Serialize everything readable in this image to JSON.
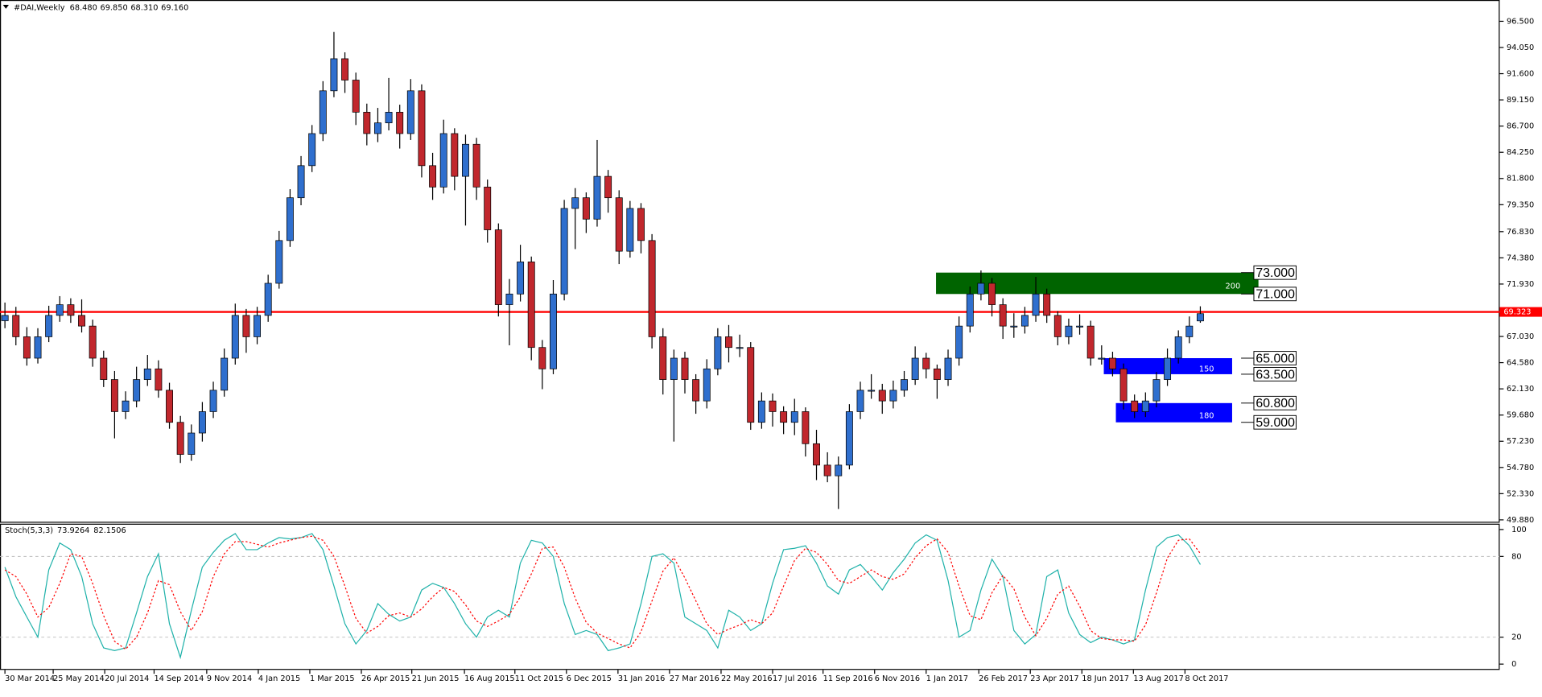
{
  "chart_data": {
    "type": "candlestick",
    "symbol": "#DAI,Weekly",
    "header_values": [
      68.48,
      69.85,
      68.31,
      69.16
    ],
    "header_value_labels": [
      "68.480",
      "69.850",
      "68.310",
      "69.160"
    ],
    "bull_color": "#2f6fce",
    "bear_color": "#c1272d",
    "candles": [
      [
        68.5,
        70.2,
        67.8,
        69
      ],
      [
        69,
        69.8,
        66.2,
        67
      ],
      [
        67,
        67.9,
        64.3,
        65
      ],
      [
        65,
        67.8,
        64.5,
        67
      ],
      [
        67,
        69.9,
        66.5,
        69
      ],
      [
        69,
        70.8,
        68.4,
        70
      ],
      [
        70,
        70.6,
        68.3,
        69
      ],
      [
        69,
        70.5,
        67.4,
        68
      ],
      [
        68,
        68.6,
        64.2,
        65
      ],
      [
        65,
        65.7,
        62.3,
        63
      ],
      [
        63,
        63.8,
        57.5,
        60
      ],
      [
        60,
        61.9,
        59.3,
        61
      ],
      [
        61,
        64.2,
        60.4,
        63
      ],
      [
        63,
        65.3,
        62.4,
        64
      ],
      [
        64,
        64.8,
        61.3,
        62
      ],
      [
        62,
        62.7,
        58.4,
        59
      ],
      [
        59,
        59.6,
        55.2,
        56
      ],
      [
        56,
        58.8,
        55.4,
        58
      ],
      [
        58,
        60.9,
        57.2,
        60
      ],
      [
        60,
        62.8,
        59.4,
        62
      ],
      [
        62,
        65.9,
        61.4,
        65
      ],
      [
        65,
        70.1,
        64.4,
        69
      ],
      [
        69,
        69.6,
        65.5,
        67
      ],
      [
        67,
        69.8,
        66.3,
        69
      ],
      [
        69,
        72.8,
        68.4,
        72
      ],
      [
        72,
        76.9,
        71.5,
        76
      ],
      [
        76,
        80.8,
        75.4,
        80
      ],
      [
        80,
        83.9,
        79.3,
        83
      ],
      [
        83,
        86.8,
        82.4,
        86
      ],
      [
        86,
        90.9,
        85.3,
        90
      ],
      [
        90,
        95.5,
        89.4,
        93
      ],
      [
        93,
        93.6,
        89.8,
        91
      ],
      [
        91,
        91.7,
        86.8,
        88
      ],
      [
        88,
        88.8,
        84.9,
        86
      ],
      [
        86,
        88.4,
        85.2,
        87
      ],
      [
        87,
        91.2,
        86.3,
        88
      ],
      [
        88,
        88.7,
        84.6,
        86
      ],
      [
        86,
        91.1,
        85.4,
        90
      ],
      [
        90,
        90.6,
        81.9,
        83
      ],
      [
        83,
        84.2,
        79.8,
        81
      ],
      [
        81,
        87.3,
        80.4,
        86
      ],
      [
        86,
        86.5,
        80.7,
        82
      ],
      [
        82,
        85.9,
        77.4,
        85
      ],
      [
        85,
        85.6,
        79.8,
        81
      ],
      [
        81,
        81.7,
        75.8,
        77
      ],
      [
        77,
        77.6,
        68.9,
        70
      ],
      [
        70,
        72.4,
        66.2,
        71
      ],
      [
        71,
        75.6,
        70.3,
        74
      ],
      [
        74,
        74.5,
        64.8,
        66
      ],
      [
        66,
        66.7,
        62.1,
        64
      ],
      [
        64,
        72.3,
        63.5,
        71
      ],
      [
        71,
        79.8,
        70.4,
        79
      ],
      [
        79,
        80.9,
        75.2,
        80
      ],
      [
        80,
        80.5,
        76.7,
        78
      ],
      [
        78,
        85.4,
        77.3,
        82
      ],
      [
        82,
        82.6,
        78.6,
        80
      ],
      [
        80,
        80.7,
        73.8,
        75
      ],
      [
        75,
        79.7,
        74.4,
        79
      ],
      [
        79,
        79.5,
        74.8,
        76
      ],
      [
        76,
        76.6,
        65.9,
        67
      ],
      [
        67,
        67.8,
        61.6,
        63
      ],
      [
        63,
        65.8,
        57.2,
        65
      ],
      [
        65,
        65.6,
        61.7,
        63
      ],
      [
        63,
        63.5,
        59.8,
        61
      ],
      [
        61,
        64.9,
        60.3,
        64
      ],
      [
        64,
        67.8,
        63.4,
        67
      ],
      [
        67,
        68.1,
        64.6,
        66
      ],
      [
        66,
        67.2,
        65.1,
        66
      ],
      [
        66,
        66.5,
        58.3,
        59
      ],
      [
        59,
        61.8,
        58.4,
        61
      ],
      [
        61,
        61.7,
        58.6,
        60
      ],
      [
        60,
        60.5,
        57.9,
        59
      ],
      [
        59,
        61.2,
        57.8,
        60
      ],
      [
        60,
        60.4,
        55.8,
        57
      ],
      [
        57,
        58.3,
        53.6,
        55
      ],
      [
        55,
        56.2,
        53.4,
        54
      ],
      [
        54,
        55.8,
        50.9,
        55
      ],
      [
        55,
        60.7,
        54.6,
        60
      ],
      [
        60,
        62.8,
        59.3,
        62
      ],
      [
        62,
        63.5,
        61.2,
        62
      ],
      [
        62,
        62.6,
        59.8,
        61
      ],
      [
        61,
        62.9,
        60.3,
        62
      ],
      [
        62,
        63.8,
        61.4,
        63
      ],
      [
        63,
        66.1,
        62.5,
        65
      ],
      [
        65,
        65.5,
        63.1,
        64
      ],
      [
        64,
        64.4,
        61.2,
        63
      ],
      [
        63,
        65.8,
        62.4,
        65
      ],
      [
        65,
        68.9,
        64.3,
        68
      ],
      [
        68,
        71.7,
        67.4,
        71
      ],
      [
        71,
        73.2,
        70.4,
        72
      ],
      [
        72,
        72.5,
        68.9,
        70
      ],
      [
        70,
        70.6,
        66.8,
        68
      ],
      [
        68,
        69.2,
        66.9,
        68
      ],
      [
        68,
        69.8,
        67.3,
        69
      ],
      [
        69,
        72.6,
        68.4,
        71
      ],
      [
        71,
        71.5,
        68.3,
        69
      ],
      [
        69,
        69.4,
        66.2,
        67
      ],
      [
        67,
        68.7,
        66.3,
        68
      ],
      [
        68,
        69.1,
        67.2,
        68
      ],
      [
        68,
        68.5,
        64.3,
        65
      ],
      [
        65,
        66.2,
        64.4,
        65
      ],
      [
        65,
        65.6,
        63.3,
        64
      ],
      [
        64,
        64.5,
        60.2,
        61
      ],
      [
        61,
        61.6,
        59.4,
        60
      ],
      [
        60,
        61.8,
        59.5,
        61
      ],
      [
        61,
        63.7,
        60.4,
        63
      ],
      [
        63,
        65.9,
        62.4,
        65
      ],
      [
        65,
        67.6,
        64.5,
        67
      ],
      [
        67,
        68.9,
        66.4,
        68
      ],
      [
        68.48,
        69.85,
        68.31,
        69.16
      ]
    ],
    "xlim": [
      -0.45,
      136.3
    ],
    "xticks": [
      {
        "value": 0,
        "label": "30 Mar 2014"
      },
      {
        "value": 4.4,
        "label": "25 May 2014"
      },
      {
        "value": 9.1,
        "label": "20 Jul 2014"
      },
      {
        "value": 13.6,
        "label": "14 Sep 2014"
      },
      {
        "value": 18.4,
        "label": "9 Nov 2014"
      },
      {
        "value": 23.1,
        "label": "4 Jan 2015"
      },
      {
        "value": 27.8,
        "label": "1 Mar 2015"
      },
      {
        "value": 32.5,
        "label": "26 Apr 2015"
      },
      {
        "value": 37.1,
        "label": "21 Jun 2015"
      },
      {
        "value": 41.9,
        "label": "16 Aug 2015"
      },
      {
        "value": 46.5,
        "label": "11 Oct 2015"
      },
      {
        "value": 51.2,
        "label": "6 Dec 2015"
      },
      {
        "value": 55.9,
        "label": "31 Jan 2016"
      },
      {
        "value": 60.6,
        "label": "27 Mar 2016"
      },
      {
        "value": 65.3,
        "label": "22 May 2016"
      },
      {
        "value": 70.0,
        "label": "17 Jul 2016"
      },
      {
        "value": 74.6,
        "label": "11 Sep 2016"
      },
      {
        "value": 79.3,
        "label": "6 Nov 2016"
      },
      {
        "value": 84.0,
        "label": "1 Jan 2017"
      },
      {
        "value": 88.8,
        "label": "26 Feb 2017"
      },
      {
        "value": 93.5,
        "label": "23 Apr 2017"
      },
      {
        "value": 98.2,
        "label": "18 Jun 2017"
      },
      {
        "value": 102.9,
        "label": "13 Aug 2017"
      },
      {
        "value": 107.6,
        "label": "8 Oct 2017"
      }
    ],
    "ylim": [
      49.61,
      98.49
    ],
    "yticks": [
      {
        "value": 96.5,
        "label": "96.500"
      },
      {
        "value": 94.05,
        "label": "94.050"
      },
      {
        "value": 91.6,
        "label": "91.600"
      },
      {
        "value": 89.15,
        "label": "89.150"
      },
      {
        "value": 86.7,
        "label": "86.700"
      },
      {
        "value": 84.25,
        "label": "84.250"
      },
      {
        "value": 81.8,
        "label": "81.800"
      },
      {
        "value": 79.35,
        "label": "79.350"
      },
      {
        "value": 76.83,
        "label": "76.830"
      },
      {
        "value": 74.38,
        "label": "74.380"
      },
      {
        "value": 71.93,
        "label": "71.930"
      },
      {
        "value": 67.03,
        "label": "67.030"
      },
      {
        "value": 64.58,
        "label": "64.580"
      },
      {
        "value": 62.13,
        "label": "62.130"
      },
      {
        "value": 59.68,
        "label": "59.680"
      },
      {
        "value": 57.23,
        "label": "57.230"
      },
      {
        "value": 54.78,
        "label": "54.780"
      },
      {
        "value": 52.33,
        "label": "52.330"
      },
      {
        "value": 49.88,
        "label": "49.880"
      }
    ],
    "current_price": 69.323,
    "current_price_color": "#ff0000",
    "zones": [
      {
        "x0": 84.9,
        "x1": 114.3,
        "y0": 71,
        "y1": 73,
        "color": "#006400",
        "label": "200"
      },
      {
        "x0": 100.2,
        "x1": 111.9,
        "y0": 63.5,
        "y1": 65,
        "color": "#0000ff",
        "label": "150"
      },
      {
        "x0": 101.3,
        "x1": 111.9,
        "y0": 59,
        "y1": 60.8,
        "color": "#0000ff",
        "label": "180"
      }
    ],
    "levels": [
      73,
      71,
      65,
      63.5,
      60.8,
      59
    ],
    "level_labels": [
      "73.000",
      "71.000",
      "65.000",
      "63.500",
      "60.800",
      "59.000"
    ],
    "indicator": {
      "type": "line",
      "title": "Stoch(5,3,3)",
      "readings": [
        73.9264,
        82.1506
      ],
      "ylim": [
        -4.3,
        104.3
      ],
      "yticks": [
        100,
        80,
        20,
        0
      ],
      "series": [
        {
          "color": "#20b2aa",
          "dashed": false,
          "values": [
            72,
            50,
            35,
            20,
            70,
            90,
            85,
            65,
            30,
            12,
            10,
            12,
            38,
            65,
            82,
            30,
            5,
            40,
            72,
            83,
            92,
            97,
            85,
            85,
            90,
            94,
            93,
            94,
            97,
            85,
            58,
            30,
            15,
            25,
            45,
            37,
            32,
            35,
            55,
            60,
            57,
            45,
            30,
            20,
            35,
            40,
            35,
            75,
            92,
            90,
            80,
            45,
            22,
            25,
            22,
            10,
            12,
            15,
            45,
            80,
            82,
            75,
            35,
            30,
            25,
            12,
            40,
            35,
            25,
            30,
            60,
            85,
            86,
            88,
            75,
            58,
            52,
            70,
            74,
            65,
            55,
            68,
            78,
            90,
            96,
            92,
            62,
            20,
            25,
            55,
            78,
            65,
            25,
            15,
            22,
            65,
            70,
            38,
            22,
            16,
            20,
            18,
            15,
            18,
            55,
            87,
            94,
            96,
            88,
            73.93
          ]
        },
        {
          "color": "#ff0000",
          "dashed": true,
          "values": [
            70,
            65,
            52,
            35,
            42,
            60,
            82,
            80,
            60,
            36,
            17,
            11,
            20,
            38,
            62,
            59,
            39,
            25,
            39,
            65,
            82,
            91,
            91,
            89,
            87,
            90,
            92,
            94,
            95,
            92,
            80,
            58,
            34,
            23,
            28,
            36,
            38,
            35,
            41,
            50,
            57,
            54,
            44,
            32,
            28,
            32,
            37,
            50,
            67,
            86,
            87,
            72,
            49,
            31,
            23,
            19,
            15,
            12,
            24,
            47,
            69,
            79,
            64,
            47,
            30,
            22,
            26,
            29,
            33,
            30,
            38,
            58,
            77,
            86,
            83,
            74,
            62,
            60,
            65,
            70,
            65,
            63,
            67,
            79,
            88,
            93,
            83,
            58,
            36,
            33,
            53,
            66,
            56,
            35,
            21,
            34,
            52,
            58,
            43,
            25,
            19,
            18,
            18,
            17,
            29,
            53,
            79,
            92,
            93,
            82.15
          ]
        }
      ]
    }
  }
}
